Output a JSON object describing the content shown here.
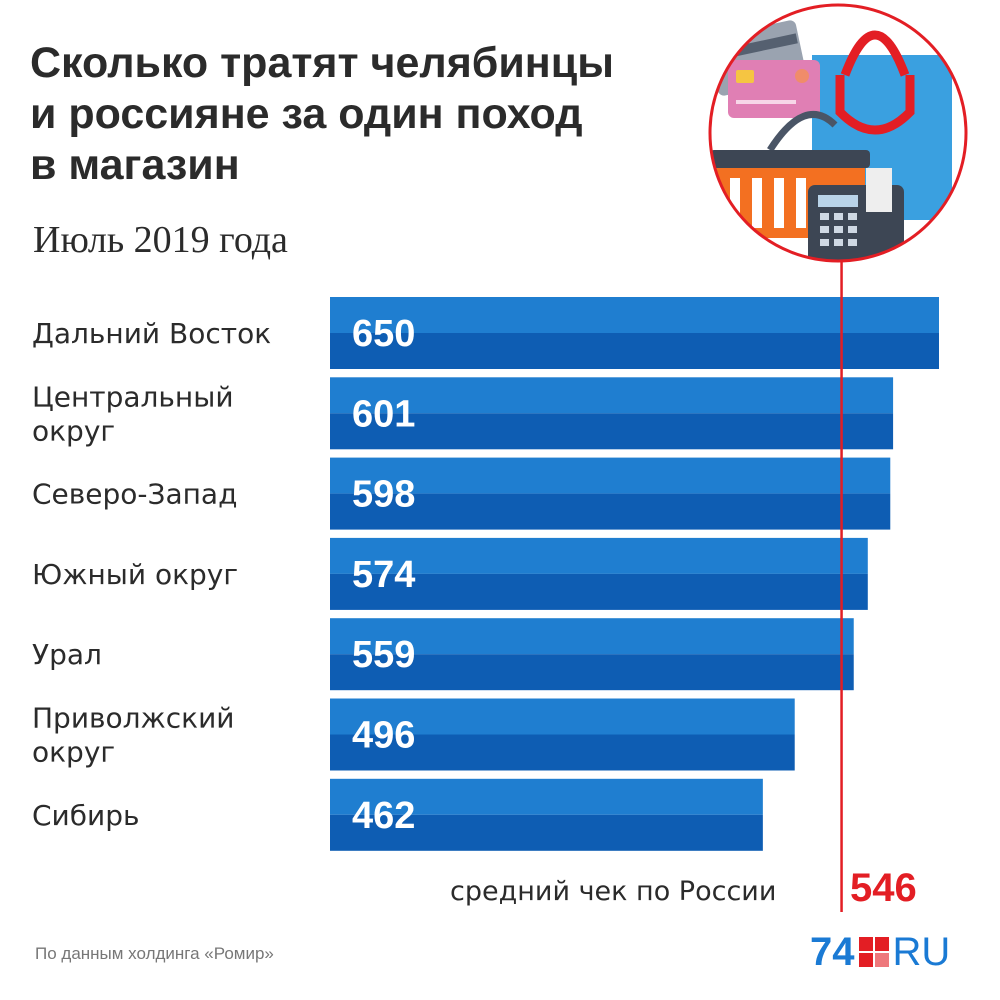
{
  "title_lines": [
    "Сколько тратят челябинцы",
    "и россияне за один поход",
    "в магазин"
  ],
  "subtitle": "Июль 2019 года",
  "source": "По данным холдинга «Ромир»",
  "logo": {
    "num": "74",
    "ru": "RU"
  },
  "colors": {
    "bar_top": "#1f7ed0",
    "bar_bottom": "#0e5db3",
    "ref_line": "#e31e24",
    "text": "#2b2b2b"
  },
  "illustration": {
    "icon": "shopping-illustration-icon",
    "items": [
      "credit-card",
      "shopping-bag",
      "shopping-basket",
      "payment-terminal"
    ]
  },
  "chart_data": {
    "type": "bar",
    "orientation": "horizontal",
    "categories": [
      [
        "Дальний Восток"
      ],
      [
        "Центральный",
        "округ"
      ],
      [
        "Северо-Запад"
      ],
      [
        "Южный округ"
      ],
      [
        "Урал"
      ],
      [
        "Приволжский",
        "округ"
      ],
      [
        "Сибирь"
      ]
    ],
    "values": [
      650,
      601,
      598,
      574,
      559,
      496,
      462
    ],
    "reference_line": {
      "label": "средний чек по России",
      "value": 546
    }
  }
}
